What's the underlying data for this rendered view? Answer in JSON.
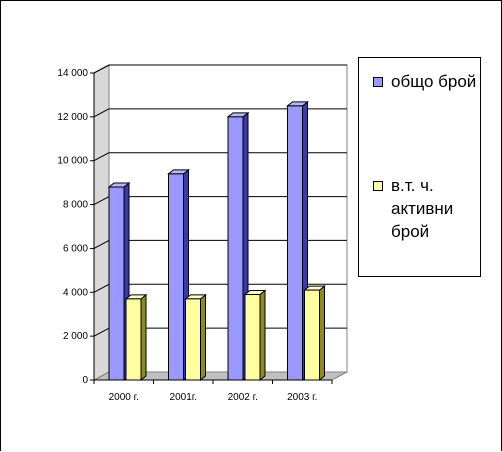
{
  "chart_data": {
    "type": "bar",
    "categories": [
      "2000 г.",
      "2001г.",
      "2002 г.",
      "2003 г."
    ],
    "series": [
      {
        "name": "общо брой",
        "values": [
          8800,
          9400,
          12000,
          12500
        ],
        "color": "#9999ff"
      },
      {
        "name": "в.т. ч. активни брой",
        "values": [
          3700,
          3700,
          3900,
          4100
        ],
        "color": "#ffffa0"
      }
    ],
    "y_ticks": [
      "0",
      "2 000",
      "4 000",
      "6 000",
      "8 000",
      "10 000",
      "12 000",
      "14 000"
    ],
    "ylim": [
      0,
      14000
    ],
    "grid": true,
    "legend": "right",
    "title": "",
    "xlabel": "",
    "ylabel": ""
  }
}
